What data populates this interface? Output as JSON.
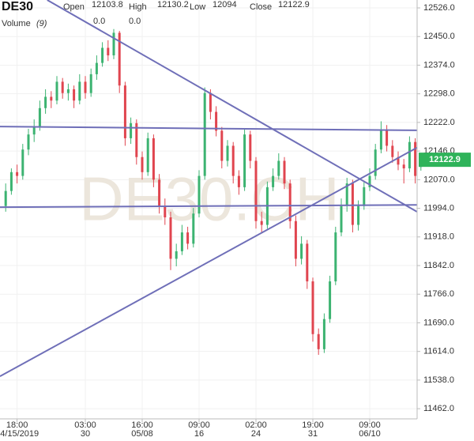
{
  "chart_data": {
    "type": "candlestick",
    "title": "DE30",
    "header": {
      "open_label": "Open",
      "high_label": "High",
      "low_label": "Low",
      "close_label": "Close"
    },
    "volume": {
      "label": "Volume",
      "period": "(9)",
      "values": [
        "0.0",
        "0.0"
      ],
      "colors": [
        "#e57373",
        "#5c85d6"
      ]
    },
    "watermark": "DE30.CH",
    "categories": [
      null,
      null,
      "18:00",
      null,
      null,
      null,
      null,
      null,
      null,
      null,
      null,
      null,
      null,
      null,
      "03:00",
      null,
      null,
      null,
      null,
      null,
      null,
      null,
      null,
      null,
      "16:00",
      null,
      null,
      null,
      null,
      null,
      null,
      null,
      null,
      null,
      "09:00",
      null,
      null,
      null,
      null,
      null,
      null,
      null,
      null,
      null,
      "02:00",
      null,
      null,
      null,
      null,
      null,
      null,
      null,
      null,
      null,
      "19:00",
      null,
      null,
      null,
      null,
      null,
      null,
      null,
      null,
      null,
      "09:00",
      null,
      null,
      null,
      null,
      null,
      null,
      null,
      null,
      null
    ],
    "category_dates": [
      null,
      null,
      "04/15/2019",
      null,
      null,
      null,
      null,
      null,
      null,
      null,
      null,
      null,
      null,
      null,
      "30",
      null,
      null,
      null,
      null,
      null,
      null,
      null,
      null,
      null,
      "05/08",
      null,
      null,
      null,
      null,
      null,
      null,
      null,
      null,
      null,
      "16",
      null,
      null,
      null,
      null,
      null,
      null,
      null,
      null,
      null,
      "24",
      null,
      null,
      null,
      null,
      null,
      null,
      null,
      null,
      null,
      "31",
      null,
      null,
      null,
      null,
      null,
      null,
      null,
      null,
      null,
      "06/10",
      null,
      null,
      null,
      null,
      null,
      null,
      null,
      null,
      null
    ],
    "open": [
      12000,
      12040,
      12090,
      12080,
      12150,
      12190,
      12210,
      12260,
      12290,
      12280,
      12330,
      12300,
      12310,
      12280,
      12330,
      12300,
      12350,
      12380,
      12420,
      12400,
      12460,
      12320,
      12180,
      12220,
      12130,
      12090,
      12180,
      12070,
      12000,
      11970,
      11860,
      11880,
      11930,
      11900,
      11980,
      12080,
      12300,
      12250,
      12200,
      12120,
      12160,
      12080,
      12050,
      12190,
      12120,
      11960,
      11950,
      12050,
      12080,
      12120,
      12060,
      11960,
      11860,
      11900,
      11800,
      11660,
      11620,
      11700,
      11800,
      11930,
      12000,
      12060,
      11950,
      12000,
      12050,
      12080,
      12150,
      12200,
      12160,
      12130,
      12110,
      12100,
      12170,
      12103.8
    ],
    "high": [
      12060,
      12100,
      12110,
      12165,
      12205,
      12230,
      12280,
      12310,
      12305,
      12345,
      12340,
      12325,
      12320,
      12350,
      12345,
      12365,
      12400,
      12435,
      12440,
      12470,
      12465,
      12330,
      12235,
      12230,
      12145,
      12195,
      12190,
      12085,
      12020,
      11985,
      11900,
      11950,
      11945,
      11995,
      12095,
      12315,
      12310,
      12265,
      12210,
      12175,
      12170,
      12095,
      12205,
      12200,
      12130,
      11985,
      12065,
      12100,
      12140,
      12130,
      12070,
      11975,
      11920,
      11910,
      11810,
      11675,
      11715,
      11815,
      11945,
      12020,
      12075,
      12070,
      12015,
      12065,
      12100,
      12165,
      12225,
      12215,
      12175,
      12145,
      12125,
      12185,
      12180,
      12130.2
    ],
    "low": [
      11985,
      12030,
      12060,
      12070,
      12135,
      12170,
      12200,
      12245,
      12260,
      12270,
      12285,
      12280,
      12260,
      12270,
      12285,
      12290,
      12335,
      12370,
      12385,
      12390,
      12300,
      12160,
      12165,
      12110,
      12070,
      12080,
      12050,
      11980,
      11950,
      11830,
      11840,
      11870,
      11885,
      11890,
      11970,
      12070,
      12230,
      12185,
      12100,
      12105,
      12060,
      12030,
      12040,
      12100,
      11940,
      11930,
      11940,
      12040,
      12070,
      12045,
      11940,
      11840,
      11845,
      11780,
      11640,
      11605,
      11610,
      11690,
      11790,
      11920,
      11985,
      11930,
      11935,
      11990,
      12040,
      12070,
      12140,
      12145,
      12115,
      12095,
      12060,
      12090,
      12060,
      12094.0
    ],
    "close": [
      12040,
      12090,
      12080,
      12150,
      12190,
      12210,
      12260,
      12290,
      12280,
      12330,
      12300,
      12310,
      12280,
      12330,
      12300,
      12350,
      12380,
      12420,
      12400,
      12460,
      12320,
      12180,
      12220,
      12130,
      12090,
      12180,
      12070,
      12000,
      11970,
      11860,
      11880,
      11930,
      11900,
      11980,
      12080,
      12300,
      12250,
      12200,
      12120,
      12160,
      12080,
      12050,
      12190,
      12120,
      11960,
      11950,
      12050,
      12080,
      12120,
      12060,
      11960,
      11860,
      11900,
      11800,
      11660,
      11620,
      11700,
      11800,
      11930,
      12000,
      12060,
      11950,
      12000,
      12050,
      12080,
      12150,
      12200,
      12160,
      12130,
      12110,
      12100,
      12170,
      12080,
      12122.9
    ],
    "up_color": "#3cb371",
    "down_color": "#e0454f",
    "trendlines": {
      "color": "#6f6fb8",
      "lines": [
        {
          "start": [
            7.3,
            12547
          ],
          "end": [
            72.3,
            11985
          ]
        },
        {
          "start": [
            -1,
            12211
          ],
          "end": [
            72.3,
            12201
          ]
        },
        {
          "start": [
            -1,
            11997
          ],
          "end": [
            72.3,
            12003
          ]
        },
        {
          "start": [
            -1,
            11548
          ],
          "end": [
            72.3,
            12155
          ]
        }
      ]
    },
    "ylim": [
      11435,
      12547
    ],
    "yticks": [
      {
        "value": 12526,
        "label": "12526.0"
      },
      {
        "value": 12450,
        "label": "12450.0"
      },
      {
        "value": 12374,
        "label": "12374.0"
      },
      {
        "value": 12298,
        "label": "12298.0"
      },
      {
        "value": 12222,
        "label": "12222.0"
      },
      {
        "value": 12146,
        "label": "12146.0"
      },
      {
        "value": 12070,
        "label": "12070.0"
      },
      {
        "value": 11994,
        "label": "11994.0"
      },
      {
        "value": 11918,
        "label": "11918.0"
      },
      {
        "value": 11842,
        "label": "11842.0"
      },
      {
        "value": 11766,
        "label": "11766.0"
      },
      {
        "value": 11690,
        "label": "11690.0"
      },
      {
        "value": 11614,
        "label": "11614.0"
      },
      {
        "value": 11538,
        "label": "11538.0"
      },
      {
        "value": 11462,
        "label": "11462.0"
      }
    ],
    "grid": true,
    "last_price_color": "#2fb35a"
  }
}
